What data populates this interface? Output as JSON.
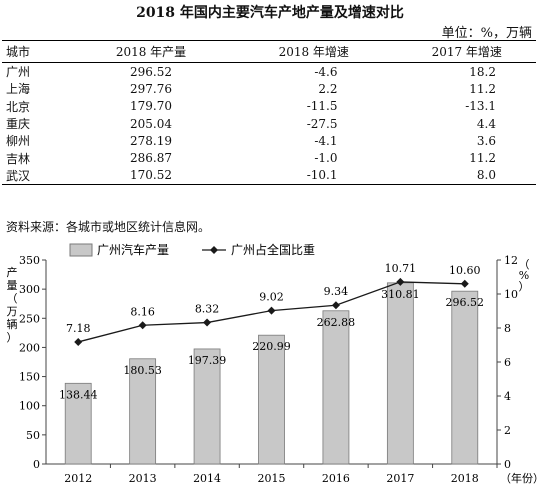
{
  "title": "2018 年国内主要汽车产地产量及增速对比",
  "unit": "单位：%，万辆",
  "table": {
    "headers": [
      "城市",
      "2018 年产量",
      "2018 年增速",
      "2017 年增速"
    ],
    "rows": [
      [
        "广州",
        "296.52",
        "-4.6",
        "18.2"
      ],
      [
        "上海",
        "297.76",
        "2.2",
        "11.2"
      ],
      [
        "北京",
        "179.70",
        "-11.5",
        "-13.1"
      ],
      [
        "重庆",
        "205.04",
        "-27.5",
        "4.4"
      ],
      [
        "柳州",
        "278.19",
        "-4.1",
        "3.6"
      ],
      [
        "吉林",
        "286.87",
        "-1.0",
        "11.2"
      ],
      [
        "武汉",
        "170.52",
        "-10.1",
        "8.0"
      ]
    ]
  },
  "source": "资料来源：各城市或地区统计信息网。",
  "chart_data": {
    "type": "bar",
    "categories": [
      "2012",
      "2013",
      "2014",
      "2015",
      "2016",
      "2017",
      "2018"
    ],
    "series": [
      {
        "name": "广州汽车产量",
        "type": "bar",
        "axis": "left",
        "values": [
          138.44,
          180.53,
          197.39,
          220.99,
          262.88,
          310.81,
          296.52
        ],
        "labels": [
          "138.44",
          "180.53",
          "197.39",
          "220.99",
          "262.88",
          "310.81",
          "296.52"
        ]
      },
      {
        "name": "广州占全国比重",
        "type": "line",
        "axis": "right",
        "values": [
          7.18,
          8.16,
          8.32,
          9.02,
          9.34,
          10.71,
          10.6
        ],
        "labels": [
          "7.18",
          "8.16",
          "8.32",
          "9.02",
          "9.34",
          "10.71",
          "10.60"
        ]
      }
    ],
    "ylabel_left": "产量（万辆）",
    "ylabel_right": "（%）",
    "xlabel": "（年份）",
    "ylim_left": [
      0,
      350
    ],
    "yticks_left": [
      "0",
      "50",
      "100",
      "150",
      "200",
      "250",
      "300",
      "350"
    ],
    "ylim_right": [
      0,
      12
    ],
    "yticks_right": [
      "0",
      "2",
      "4",
      "6",
      "8",
      "10",
      "12"
    ],
    "legend_position": "top",
    "colors": {
      "bar_fill": "#c8c8c8",
      "bar_stroke": "#7a7a7a",
      "line": "#1a1a1a",
      "axis": "#444444"
    }
  }
}
